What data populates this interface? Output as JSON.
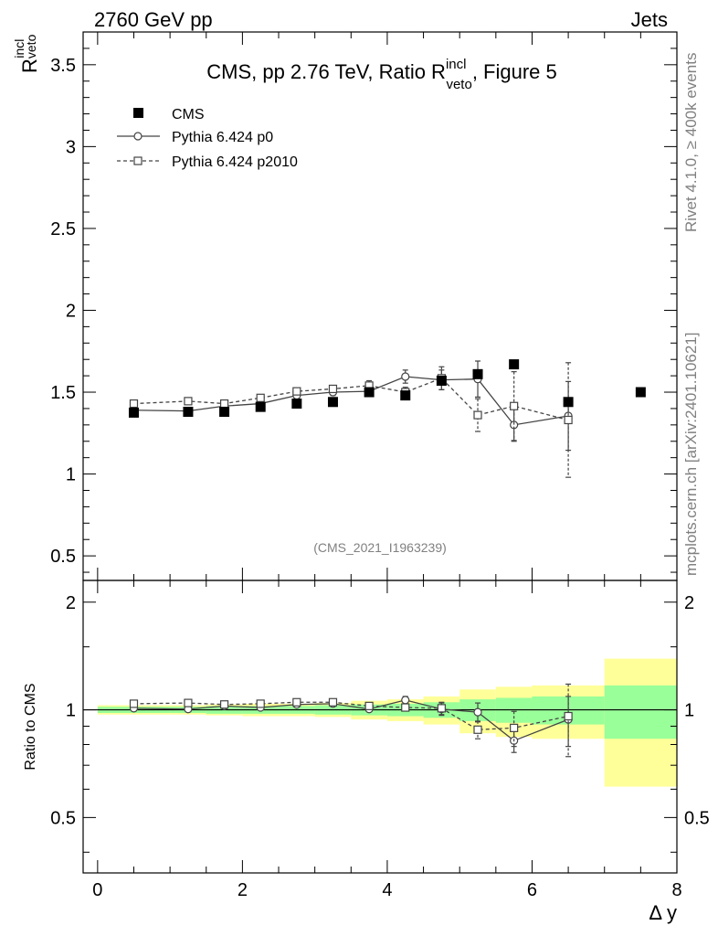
{
  "header": {
    "left_label": "2760 GeV pp",
    "right_label": "Jets",
    "side_label_top": "Rivet 4.1.0, ≥ 400k events",
    "side_label_bottom": "mcplots.cern.ch [arXiv:2401.10621]",
    "watermark": "(CMS_2021_I1963239)"
  },
  "chart_data": [
    {
      "type": "scatter",
      "panel": "main",
      "title": "CMS, pp 2.76 TeV, Ratio R",
      "title_sup": "incl",
      "title_sub": "veto",
      "title_suffix": ", Figure 5",
      "ylabel": "R",
      "ylabel_sup": "incl",
      "ylabel_sub": "veto",
      "xlim": [
        -0.2,
        8.0
      ],
      "ylim": [
        0.35,
        3.7
      ],
      "yticks": [
        0.5,
        1,
        1.5,
        2,
        2.5,
        3,
        3.5
      ],
      "ytick_labels": [
        "0.5",
        "1",
        "1.5",
        "2",
        "2.5",
        "3",
        "3.5"
      ],
      "legend_position": "top-left",
      "series": [
        {
          "name": "CMS",
          "style": "data",
          "x": [
            0.5,
            1.25,
            1.75,
            2.25,
            2.75,
            3.25,
            3.75,
            4.25,
            4.75,
            5.25,
            5.75,
            6.5,
            7.5
          ],
          "y": [
            1.375,
            1.38,
            1.38,
            1.41,
            1.43,
            1.44,
            1.5,
            1.48,
            1.57,
            1.61,
            1.67,
            1.44,
            1.5
          ]
        },
        {
          "name": "Pythia 6.424 p0",
          "style": "solid-circle",
          "x": [
            0.5,
            1.25,
            1.75,
            2.25,
            2.75,
            3.25,
            3.75,
            4.25,
            4.75,
            5.25,
            5.75,
            6.5
          ],
          "y": [
            1.39,
            1.385,
            1.415,
            1.43,
            1.48,
            1.5,
            1.505,
            1.595,
            1.575,
            1.58,
            1.3,
            1.355
          ],
          "err": [
            0.01,
            0.01,
            0.01,
            0.01,
            0.01,
            0.02,
            0.02,
            0.04,
            0.06,
            0.11,
            0.1,
            0.21
          ]
        },
        {
          "name": "Pythia 6.424 p2010",
          "style": "dashed-square",
          "x": [
            0.5,
            1.25,
            1.75,
            2.25,
            2.75,
            3.25,
            3.75,
            4.25,
            4.75,
            5.25,
            5.75,
            6.5
          ],
          "y": [
            1.43,
            1.445,
            1.43,
            1.465,
            1.505,
            1.52,
            1.54,
            1.5,
            1.585,
            1.36,
            1.415,
            1.33
          ],
          "err": [
            0.01,
            0.01,
            0.01,
            0.01,
            0.01,
            0.02,
            0.03,
            0.03,
            0.07,
            0.1,
            0.21,
            0.35
          ]
        }
      ]
    },
    {
      "type": "scatter",
      "panel": "ratio",
      "ylabel": "Ratio to CMS",
      "xlabel": "Δ y",
      "xlim": [
        -0.2,
        8.0
      ],
      "ylim": [
        0.35,
        2.3
      ],
      "yticks": [
        0.5,
        1,
        2
      ],
      "ytick_labels": [
        "0.5",
        "1",
        "2"
      ],
      "xticks": [
        0,
        2,
        4,
        6,
        8
      ],
      "xtick_labels": [
        "0",
        "2",
        "4",
        "6",
        "8"
      ],
      "bands": {
        "x_edges": [
          0,
          1,
          1.5,
          2,
          2.5,
          3,
          3.5,
          4,
          4.5,
          5,
          5.5,
          6,
          7,
          8
        ],
        "yellow": [
          0.03,
          0.03,
          0.035,
          0.04,
          0.04,
          0.045,
          0.06,
          0.07,
          0.09,
          0.14,
          0.16,
          0.17,
          0.39
        ],
        "green": [
          0.02,
          0.02,
          0.025,
          0.025,
          0.025,
          0.03,
          0.035,
          0.04,
          0.05,
          0.07,
          0.08,
          0.09,
          0.17
        ]
      },
      "series": [
        {
          "name": "Pythia 6.424 p0",
          "style": "solid-circle",
          "x": [
            0.5,
            1.25,
            1.75,
            2.25,
            2.75,
            3.25,
            3.75,
            4.25,
            4.75,
            5.25,
            5.75,
            6.5
          ],
          "y": [
            1.01,
            1.005,
            1.025,
            1.015,
            1.035,
            1.04,
            1.005,
            1.065,
            1.005,
            0.985,
            0.82,
            0.94
          ],
          "err": [
            0.005,
            0.005,
            0.005,
            0.005,
            0.005,
            0.01,
            0.01,
            0.025,
            0.04,
            0.06,
            0.06,
            0.15
          ]
        },
        {
          "name": "Pythia 6.424 p2010",
          "style": "dashed-square",
          "x": [
            0.5,
            1.25,
            1.75,
            2.25,
            2.75,
            3.25,
            3.75,
            4.25,
            4.75,
            5.25,
            5.75,
            6.5
          ],
          "y": [
            1.04,
            1.045,
            1.035,
            1.04,
            1.05,
            1.05,
            1.025,
            1.015,
            1.01,
            0.88,
            0.89,
            0.96
          ],
          "err": [
            0.005,
            0.005,
            0.005,
            0.005,
            0.005,
            0.01,
            0.02,
            0.02,
            0.04,
            0.05,
            0.1,
            0.22
          ]
        }
      ]
    }
  ]
}
